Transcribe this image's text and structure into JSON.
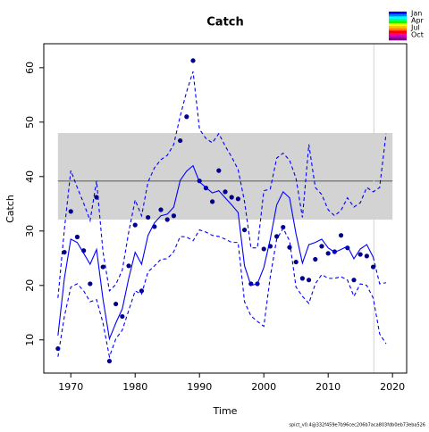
{
  "chart_data": {
    "type": "line",
    "title": "Catch",
    "xlabel": "Time",
    "ylabel": "Catch",
    "footer": "spict_v0.4@332f459e7b96cec206b7aca803fdb0eb73eba526",
    "x": [
      1968,
      1969,
      1970,
      1971,
      1972,
      1973,
      1974,
      1975,
      1976,
      1977,
      1978,
      1979,
      1980,
      1981,
      1982,
      1983,
      1984,
      1985,
      1986,
      1987,
      1988,
      1989,
      1990,
      1991,
      1992,
      1993,
      1994,
      1995,
      1996,
      1997,
      1998,
      1999,
      2000,
      2001,
      2002,
      2003,
      2004,
      2005,
      2006,
      2007,
      2008,
      2009,
      2010,
      2011,
      2012,
      2013,
      2014,
      2015,
      2016,
      2017,
      2018,
      2019
    ],
    "series": [
      {
        "style": "points",
        "color": "#00008b",
        "values": [
          8.4,
          26.1,
          33.6,
          28.9,
          26.4,
          20.3,
          36.2,
          23.4,
          6.1,
          16.6,
          14.3,
          23.6,
          31.1,
          19.0,
          32.5,
          30.8,
          33.9,
          32.1,
          32.8,
          46.6,
          51.0,
          61.3,
          39.2,
          37.9,
          35.4,
          41.1,
          37.2,
          36.2,
          35.9,
          30.2,
          20.3,
          20.3,
          26.7,
          27.2,
          29.0,
          30.7,
          27.0,
          24.3,
          21.3,
          21.0,
          24.8,
          27.2,
          25.9,
          26.2,
          29.2,
          26.9,
          21.0,
          25.7,
          25.4,
          23.4,
          null,
          null
        ]
      },
      {
        "style": "solid",
        "color": "#0000ff",
        "values": [
          10.8,
          21.3,
          28.5,
          27.9,
          25.9,
          23.9,
          26.6,
          17.5,
          10.2,
          13.1,
          15.7,
          21.3,
          26.1,
          23.9,
          29.2,
          31.5,
          32.8,
          33.1,
          34.4,
          39.3,
          41.0,
          42.0,
          39.0,
          38.0,
          37.0,
          37.4,
          36.1,
          34.8,
          33.4,
          23.6,
          20.0,
          20.3,
          23.3,
          28.5,
          34.8,
          37.2,
          36.1,
          29.5,
          24.1,
          27.5,
          27.9,
          28.5,
          26.9,
          26.1,
          26.6,
          27.2,
          24.9,
          26.7,
          27.5,
          25.2,
          null,
          null
        ]
      },
      {
        "style": "dashed",
        "color": "#0000ff",
        "values": [
          17.7,
          30.3,
          41.1,
          38.0,
          35.1,
          31.9,
          39.2,
          26.2,
          19.0,
          20.2,
          22.8,
          29.8,
          35.7,
          32.8,
          39.0,
          41.6,
          43.1,
          43.9,
          45.9,
          51.1,
          55.6,
          59.3,
          48.7,
          47.0,
          46.2,
          47.9,
          45.6,
          43.6,
          41.3,
          35.4,
          26.9,
          26.9,
          37.4,
          37.7,
          43.4,
          44.3,
          43.0,
          39.7,
          32.5,
          45.9,
          38.0,
          36.7,
          33.9,
          32.8,
          33.8,
          36.1,
          34.4,
          35.2,
          38.0,
          37.2,
          38.0,
          47.9
        ]
      },
      {
        "style": "dashed",
        "color": "#0000ff",
        "values": [
          6.9,
          14.3,
          19.7,
          20.3,
          19.0,
          17.0,
          17.4,
          13.1,
          6.9,
          10.2,
          11.8,
          15.4,
          19.0,
          18.4,
          22.5,
          23.6,
          24.8,
          24.9,
          26.2,
          29.0,
          28.9,
          28.2,
          30.2,
          29.8,
          29.2,
          29.0,
          28.5,
          27.9,
          27.9,
          17.0,
          14.4,
          13.4,
          12.5,
          21.6,
          28.5,
          30.5,
          28.2,
          19.7,
          18.0,
          16.7,
          20.3,
          22.0,
          21.3,
          21.3,
          21.6,
          21.0,
          18.0,
          20.3,
          20.0,
          17.7,
          11.1,
          9.3
        ]
      },
      {
        "style": "dashed",
        "color": "#0000ff",
        "values": [
          null,
          null,
          null,
          null,
          null,
          null,
          null,
          null,
          null,
          null,
          null,
          null,
          null,
          null,
          null,
          null,
          null,
          null,
          null,
          null,
          null,
          null,
          null,
          null,
          null,
          null,
          null,
          null,
          null,
          null,
          null,
          null,
          null,
          null,
          null,
          null,
          null,
          null,
          null,
          null,
          null,
          null,
          null,
          null,
          null,
          null,
          null,
          null,
          null,
          25.2,
          20.3,
          20.5
        ]
      }
    ],
    "band": {
      "x": [
        1968,
        2020
      ],
      "y": [
        32.1,
        48.0
      ],
      "color": "#d3d3d3"
    },
    "hline": {
      "value": 39.2,
      "x": [
        1968,
        2020
      ],
      "color": "#808080"
    },
    "vline": {
      "value": 2017.1,
      "color": "#d3d3d3"
    },
    "xlim": [
      1965.8,
      2022.2
    ],
    "ylim": [
      3.9,
      64.4
    ],
    "xticks": [
      1970,
      1980,
      1990,
      2000,
      2010,
      2020
    ],
    "yticks": [
      10,
      20,
      30,
      40,
      50,
      60
    ],
    "legend": {
      "labels": [
        "Jan",
        "Apr",
        "Jul",
        "Oct"
      ],
      "colors": [
        "#0000ff",
        "#0080ff",
        "#00ffff",
        "#00ff80",
        "#00ff00",
        "#ffff00",
        "#ffc000",
        "#ff8000",
        "#ff0000",
        "#ff0080",
        "#c000c0",
        "#800080"
      ]
    }
  }
}
